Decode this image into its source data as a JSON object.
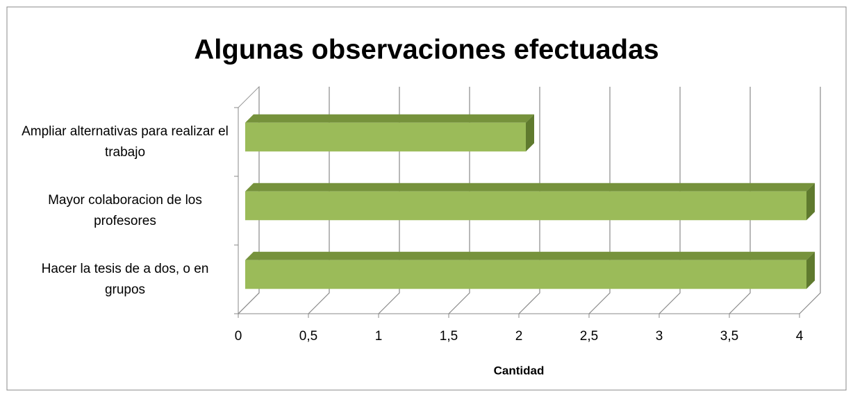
{
  "chart_data": {
    "type": "bar3d_horizontal",
    "title": "Algunas observaciones efectuadas",
    "categories": [
      "Ampliar alternativas para realizar el trabajo",
      "Mayor colaboracion de los profesores",
      "Hacer la tesis de a dos, o en grupos"
    ],
    "values": [
      2,
      4,
      4
    ],
    "color": "#9bbb59",
    "x_label": "Cantidad",
    "xlim": [
      0,
      4
    ],
    "xticks": [
      0,
      {
        "value": 0.5,
        "label": "0,5"
      },
      1,
      {
        "value": 1.5,
        "label": "1,5"
      },
      2,
      {
        "value": 2.5,
        "label": "2,5"
      },
      3,
      {
        "value": 3.5,
        "label": "3,5"
      },
      4
    ],
    "grid": true
  }
}
